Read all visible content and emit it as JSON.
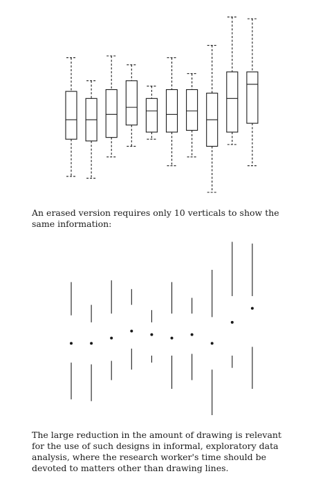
{
  "text": {
    "paragraph_1": "An erased version requires only 10 verticals to show the same information:",
    "paragraph_2": "The large reduction in the amount of drawing is relevant for the use of such designs in informal, exploratory data analysis, where the research worker's time should be devoted to matters other than drawing lines."
  },
  "colors": {
    "ink": "#1a1a1a"
  },
  "chart_data": [
    {
      "type": "boxplot",
      "style": "conventional box plot with dashed whiskers",
      "title": "",
      "xlabel": "",
      "ylabel": "",
      "grid": false,
      "ylim": [
        0,
        100
      ],
      "series": [
        {
          "min": 9,
          "q1": 30,
          "median": 41,
          "q3": 57,
          "max": 76
        },
        {
          "min": 8,
          "q1": 29,
          "median": 41,
          "q3": 53,
          "max": 63
        },
        {
          "min": 20,
          "q1": 31,
          "median": 44,
          "q3": 58,
          "max": 77
        },
        {
          "min": 26,
          "q1": 38,
          "median": 48,
          "q3": 63,
          "max": 72
        },
        {
          "min": 30,
          "q1": 34,
          "median": 46,
          "q3": 53,
          "max": 60
        },
        {
          "min": 15,
          "q1": 34,
          "median": 44,
          "q3": 58,
          "max": 76
        },
        {
          "min": 20,
          "q1": 35,
          "median": 46,
          "q3": 58,
          "max": 67
        },
        {
          "min": 0,
          "q1": 26,
          "median": 41,
          "q3": 56,
          "max": 83
        },
        {
          "min": 27,
          "q1": 34,
          "median": 53,
          "q3": 68,
          "max": 99
        },
        {
          "min": 15,
          "q1": 39,
          "median": 61,
          "q3": 68,
          "max": 98
        }
      ]
    },
    {
      "type": "boxplot",
      "style": "erased (range-frame) version: whisker segments with a median dot",
      "title": "",
      "xlabel": "",
      "ylabel": "",
      "grid": false,
      "ylim": [
        0,
        100
      ],
      "series": [
        {
          "min": 9,
          "q1": 30,
          "median": 41,
          "q3": 57,
          "max": 76
        },
        {
          "min": 8,
          "q1": 29,
          "median": 41,
          "q3": 53,
          "max": 63
        },
        {
          "min": 20,
          "q1": 31,
          "median": 44,
          "q3": 58,
          "max": 77
        },
        {
          "min": 26,
          "q1": 38,
          "median": 48,
          "q3": 63,
          "max": 72
        },
        {
          "min": 30,
          "q1": 34,
          "median": 46,
          "q3": 53,
          "max": 60
        },
        {
          "min": 15,
          "q1": 34,
          "median": 44,
          "q3": 58,
          "max": 76
        },
        {
          "min": 20,
          "q1": 35,
          "median": 46,
          "q3": 58,
          "max": 67
        },
        {
          "min": 0,
          "q1": 26,
          "median": 41,
          "q3": 56,
          "max": 83
        },
        {
          "min": 27,
          "q1": 34,
          "median": 53,
          "q3": 68,
          "max": 99
        },
        {
          "min": 15,
          "q1": 39,
          "median": 61,
          "q3": 68,
          "max": 98
        }
      ]
    }
  ]
}
